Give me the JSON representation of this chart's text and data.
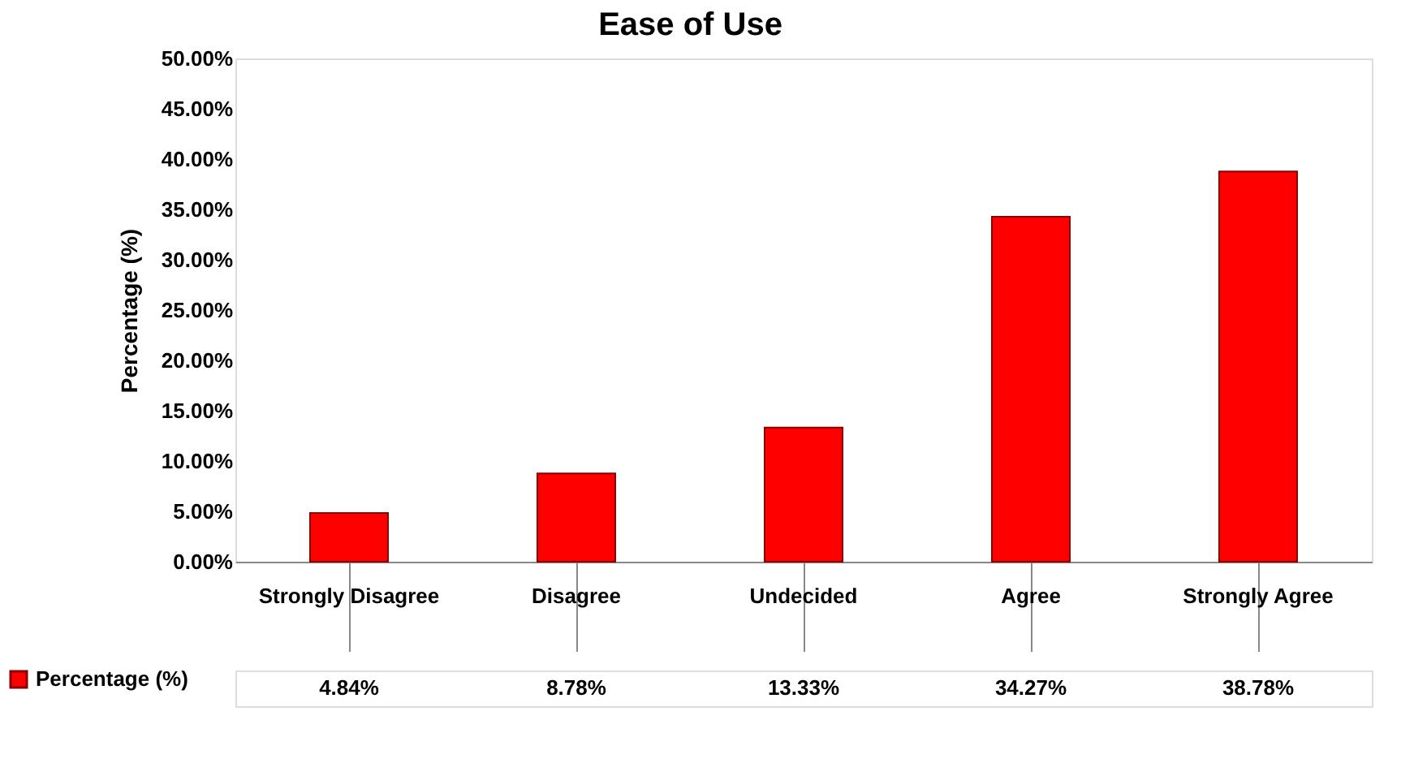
{
  "chart_data": {
    "type": "bar",
    "title": "Ease of Use",
    "ylabel": "Percentage (%)",
    "categories": [
      "Strongly Disagree",
      "Disagree",
      "Undecided",
      "Agree",
      "Strongly Agree"
    ],
    "series": [
      {
        "name": "Percentage (%)",
        "color": "#ff0000",
        "values": [
          4.84,
          8.78,
          13.33,
          34.27,
          38.78
        ],
        "value_labels": [
          "4.84%",
          "8.78%",
          "13.33%",
          "34.27%",
          "38.78%"
        ]
      }
    ],
    "ylim": [
      0,
      50
    ],
    "yticks": [
      {
        "value": 0,
        "label": "0.00%"
      },
      {
        "value": 5,
        "label": "5.00%"
      },
      {
        "value": 10,
        "label": "10.00%"
      },
      {
        "value": 15,
        "label": "15.00%"
      },
      {
        "value": 20,
        "label": "20.00%"
      },
      {
        "value": 25,
        "label": "25.00%"
      },
      {
        "value": 30,
        "label": "30.00%"
      },
      {
        "value": 35,
        "label": "35.00%"
      },
      {
        "value": 40,
        "label": "40.00%"
      },
      {
        "value": 45,
        "label": "45.00%"
      },
      {
        "value": 50,
        "label": "50.00%"
      }
    ],
    "grid": false,
    "legend": "bottom left"
  }
}
